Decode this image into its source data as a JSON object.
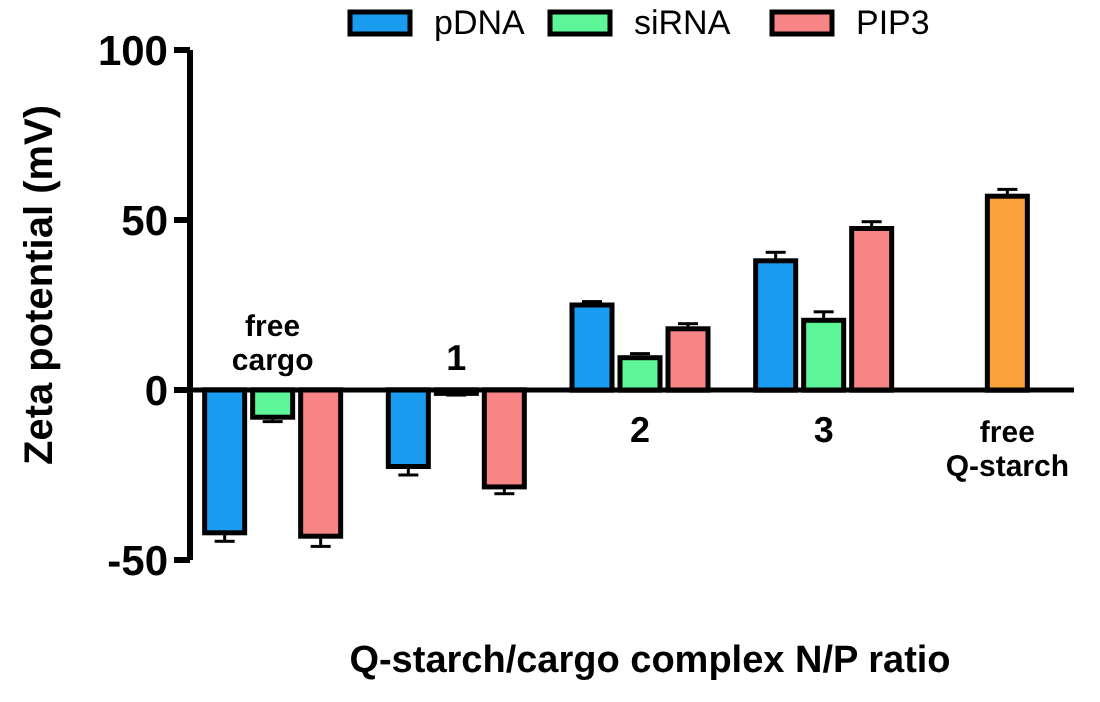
{
  "chart_data": {
    "type": "bar",
    "xlabel": "Q-starch/cargo complex N/P ratio",
    "ylabel": "Zeta potential (mV)",
    "categories": [
      "free cargo",
      "1",
      "2",
      "3",
      "free Q-starch"
    ],
    "series": [
      {
        "name": "pDNA",
        "color": "#1a9cf0",
        "values": [
          -42,
          -22.5,
          25,
          38,
          null
        ],
        "errors": [
          2.5,
          2.5,
          1,
          2.5,
          null
        ]
      },
      {
        "name": "siRNA",
        "color": "#5cf598",
        "values": [
          -8,
          -1,
          9.5,
          20.5,
          null
        ],
        "errors": [
          1.3,
          0.5,
          1.2,
          2.5,
          null
        ]
      },
      {
        "name": "PIP3",
        "color": "#f88585",
        "values": [
          -43,
          -28.5,
          18,
          47.5,
          null
        ],
        "errors": [
          3,
          2,
          1.5,
          2,
          null
        ]
      },
      {
        "color": "#f9a23a",
        "values": [
          null,
          null,
          null,
          null,
          57
        ],
        "errors": [
          null,
          null,
          null,
          null,
          2
        ]
      }
    ],
    "ylim": [
      -50,
      100
    ],
    "yticks": [
      -50,
      0,
      50,
      100
    ],
    "legend": "top",
    "grid": false
  }
}
